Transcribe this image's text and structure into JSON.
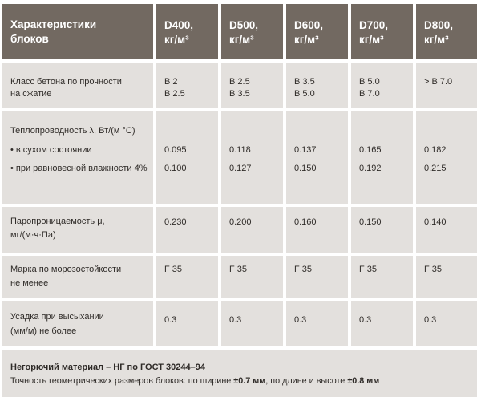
{
  "header": {
    "label_lines": [
      "Характеристики",
      "блоков"
    ],
    "columns": [
      {
        "lines": [
          "D400,",
          "кг/м³"
        ]
      },
      {
        "lines": [
          "D500,",
          "кг/м³"
        ]
      },
      {
        "lines": [
          "D600,",
          "кг/м³"
        ]
      },
      {
        "lines": [
          "D700,",
          "кг/м³"
        ]
      },
      {
        "lines": [
          "D800,",
          "кг/м³"
        ]
      }
    ]
  },
  "rows": [
    {
      "label_lines": [
        "Класс бетона по прочности",
        "на сжатие"
      ],
      "values": [
        [
          "B 2",
          "B 2.5"
        ],
        [
          "B 2.5",
          "B 3.5"
        ],
        [
          "B 3.5",
          "B 5.0"
        ],
        [
          "B 5.0",
          "B 7.0"
        ],
        [
          "> B 7.0"
        ]
      ]
    },
    {
      "label_lines": [
        "Теплопроводность λ, Вт/(м °С)",
        "• в сухом состоянии",
        "• при равновесной влажности 4%"
      ],
      "values": [
        [
          "0.095",
          "0.100"
        ],
        [
          "0.118",
          "0.127"
        ],
        [
          "0.137",
          "0.150"
        ],
        [
          "0.165",
          "0.192"
        ],
        [
          "0.182",
          "0.215"
        ]
      ]
    },
    {
      "label_lines": [
        "Паропроницаемость μ,",
        "мг/(м·ч·Па)"
      ],
      "values": [
        [
          "0.230"
        ],
        [
          "0.200"
        ],
        [
          "0.160"
        ],
        [
          "0.150"
        ],
        [
          "0.140"
        ]
      ]
    },
    {
      "label_lines": [
        "Марка по морозостойкости",
        "не менее"
      ],
      "values": [
        [
          "F 35"
        ],
        [
          "F 35"
        ],
        [
          "F 35"
        ],
        [
          "F 35"
        ],
        [
          "F 35"
        ]
      ]
    },
    {
      "label_lines": [
        "Усадка при высыхании",
        "(мм/м) не более"
      ],
      "values": [
        [
          "0.3"
        ],
        [
          "0.3"
        ],
        [
          "0.3"
        ],
        [
          "0.3"
        ],
        [
          "0.3"
        ]
      ]
    }
  ],
  "footer": {
    "line1": "Негорючий материал – НГ по ГОСТ 30244–94",
    "line2_a": "Точность геометрических размеров блоков: по ширине ",
    "line2_b": "±0.7 мм",
    "line2_c": ", по длине и высоте ",
    "line2_d": "±0.8 мм"
  },
  "colors": {
    "header_bg": "#726961",
    "cell_bg": "#e3e0dd",
    "text": "#2f2b28"
  }
}
